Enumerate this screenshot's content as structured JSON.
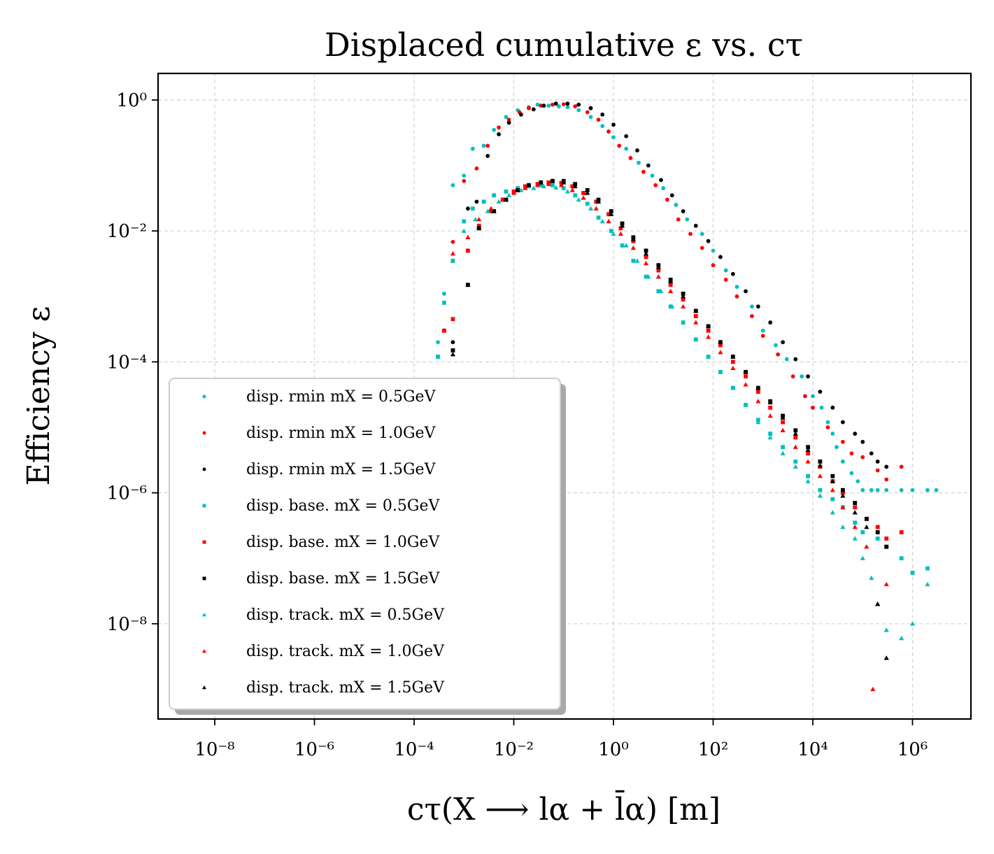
{
  "chart_data": {
    "type": "scatter",
    "title": "Displaced cumulative ε vs. cτ",
    "xlabel": "cτ(X ⟶ lα + l̄α) [m]",
    "ylabel": "Efficiency ε",
    "x_scale": "log",
    "y_scale": "log",
    "xlim": [
      1e-09,
      10000000.0
    ],
    "ylim": [
      3e-10,
      2.5
    ],
    "grid": true,
    "legend_position": "lower-left",
    "x_ticks": [
      {
        "value": 1e-08,
        "label": "10⁻⁸"
      },
      {
        "value": 1e-06,
        "label": "10⁻⁶"
      },
      {
        "value": 0.0001,
        "label": "10⁻⁴"
      },
      {
        "value": 0.01,
        "label": "10⁻²"
      },
      {
        "value": 1,
        "label": "10⁰"
      },
      {
        "value": 100.0,
        "label": "10²"
      },
      {
        "value": 10000.0,
        "label": "10⁴"
      },
      {
        "value": 1000000.0,
        "label": "10⁶"
      }
    ],
    "y_ticks": [
      {
        "value": 1,
        "label": "10⁰"
      },
      {
        "value": 0.01,
        "label": "10⁻²"
      },
      {
        "value": 0.0001,
        "label": "10⁻⁴"
      },
      {
        "value": 1e-06,
        "label": "10⁻⁶"
      },
      {
        "value": 1e-08,
        "label": "10⁻⁸"
      }
    ],
    "series": [
      {
        "name": "disp. r_min m_X = 0.5GeV",
        "label": "disp. rmin mX = 0.5GeV",
        "color": "#00bfbf",
        "marker": "circle",
        "x": [
          0.0003,
          0.0003,
          0.0004,
          0.0006,
          0.001,
          0.0015,
          0.0025,
          0.004,
          0.007,
          0.012,
          0.02,
          0.03,
          0.05,
          0.08,
          0.12,
          0.2,
          0.35,
          0.6,
          1.0,
          1.8,
          3.2,
          6,
          10,
          18,
          30,
          60,
          100,
          180,
          300,
          600,
          1000,
          1800,
          3000,
          6000,
          10000,
          15000,
          20000,
          25000,
          30000,
          40000,
          60000,
          80000,
          100000,
          150000,
          200000,
          300000,
          600000,
          1000000,
          2000000,
          3000000
        ],
        "y": [
          0.0002,
          0.00012,
          0.0011,
          0.05,
          0.07,
          0.18,
          0.2,
          0.35,
          0.55,
          0.7,
          0.78,
          0.85,
          0.82,
          0.8,
          0.78,
          0.7,
          0.55,
          0.4,
          0.27,
          0.18,
          0.11,
          0.07,
          0.045,
          0.025,
          0.015,
          0.009,
          0.005,
          0.0025,
          0.0014,
          0.0007,
          0.0003,
          0.00018,
          0.00011,
          6e-05,
          3e-05,
          2e-05,
          1.2e-05,
          8e-06,
          5e-06,
          3e-06,
          2e-06,
          1.5e-06,
          1.1e-06,
          1.1e-06,
          1.1e-06,
          1.1e-06,
          1.1e-06,
          1.1e-06,
          1.1e-06,
          1.1e-06
        ]
      },
      {
        "name": "disp. r_min m_X = 1.0GeV",
        "label": "disp. rmin mX = 1.0GeV",
        "color": "#ff0000",
        "marker": "circle",
        "x": [
          0.0004,
          0.0004,
          0.0006,
          0.001,
          0.0018,
          0.003,
          0.005,
          0.008,
          0.013,
          0.02,
          0.035,
          0.06,
          0.1,
          0.17,
          0.3,
          0.5,
          0.8,
          1.3,
          2.2,
          4,
          7,
          12,
          20,
          35,
          60,
          100,
          180,
          300,
          600,
          1000,
          2000,
          4000,
          7000,
          10000,
          20000,
          40000,
          60000,
          100000,
          200000,
          300000,
          600000
        ],
        "y": [
          4e-05,
          3e-05,
          0.0068,
          0.058,
          0.09,
          0.2,
          0.38,
          0.5,
          0.65,
          0.75,
          0.82,
          0.85,
          0.86,
          0.8,
          0.65,
          0.5,
          0.33,
          0.2,
          0.13,
          0.08,
          0.05,
          0.03,
          0.015,
          0.009,
          0.0055,
          0.003,
          0.0018,
          0.001,
          0.0005,
          0.00025,
          0.00013,
          6e-05,
          3e-05,
          2e-05,
          1e-05,
          6e-06,
          4e-06,
          3.5e-06,
          2.2e-06,
          1.6e-06,
          2.5e-06
        ]
      },
      {
        "name": "disp. r_min m_X = 1.5GeV",
        "label": "disp. rmin mX = 1.5GeV",
        "color": "#000000",
        "marker": "circle",
        "x": [
          0.0006,
          0.0006,
          0.0012,
          0.0018,
          0.003,
          0.005,
          0.008,
          0.014,
          0.025,
          0.04,
          0.07,
          0.12,
          0.2,
          0.35,
          0.6,
          1.0,
          1.8,
          3,
          5,
          9,
          15,
          25,
          45,
          80,
          140,
          250,
          450,
          800,
          1400,
          2500,
          4500,
          8000,
          14000,
          25000,
          40000,
          70000,
          100000,
          150000,
          200000,
          300000
        ],
        "y": [
          0.0002,
          0.00015,
          0.022,
          0.028,
          0.14,
          0.3,
          0.45,
          0.6,
          0.72,
          0.82,
          0.88,
          0.88,
          0.85,
          0.75,
          0.6,
          0.42,
          0.28,
          0.17,
          0.1,
          0.06,
          0.035,
          0.02,
          0.012,
          0.007,
          0.004,
          0.0022,
          0.0012,
          0.0007,
          0.0004,
          0.0002,
          0.00011,
          6e-05,
          3.5e-05,
          2e-05,
          1.2e-05,
          8e-06,
          6e-06,
          4e-06,
          3e-06,
          2.5e-06
        ]
      },
      {
        "name": "disp. base. m_X = 0.5GeV",
        "label": "disp. base. mX = 0.5GeV",
        "color": "#00bfbf",
        "marker": "square",
        "x": [
          0.0003,
          0.0004,
          0.0006,
          0.001,
          0.0015,
          0.0025,
          0.004,
          0.007,
          0.012,
          0.02,
          0.035,
          0.06,
          0.1,
          0.17,
          0.3,
          0.5,
          0.9,
          1.5,
          2.5,
          4.5,
          8,
          14,
          25,
          45,
          80,
          140,
          250,
          450,
          800,
          1400,
          2500,
          4500,
          8000,
          14000,
          25000,
          40000,
          70000,
          100000,
          200000,
          300000,
          600000,
          1000000,
          2000000
        ],
        "y": [
          0.00012,
          0.0008,
          0.0035,
          0.014,
          0.022,
          0.028,
          0.035,
          0.04,
          0.045,
          0.048,
          0.05,
          0.05,
          0.045,
          0.035,
          0.026,
          0.016,
          0.01,
          0.006,
          0.0035,
          0.002,
          0.0012,
          0.0007,
          0.0004,
          0.00022,
          0.00012,
          7e-05,
          4e-05,
          2.2e-05,
          1.3e-05,
          8e-06,
          5e-06,
          3e-06,
          1.8e-06,
          1.1e-06,
          8e-07,
          6e-07,
          3.5e-07,
          2.5e-07,
          2e-07,
          1.5e-07,
          1e-07,
          6e-08,
          7e-08
        ]
      },
      {
        "name": "disp. base. m_X = 1.0GeV",
        "label": "disp. base. mX = 1.0GeV",
        "color": "#ff0000",
        "marker": "square",
        "x": [
          0.0004,
          0.0006,
          0.0012,
          0.002,
          0.0035,
          0.006,
          0.01,
          0.017,
          0.03,
          0.05,
          0.09,
          0.15,
          0.25,
          0.45,
          0.8,
          1.4,
          2.5,
          4.5,
          8,
          14,
          25,
          45,
          80,
          140,
          250,
          450,
          800,
          1400,
          2500,
          4500,
          8000,
          14000,
          25000,
          40000,
          70000,
          120000,
          200000,
          300000,
          600000
        ],
        "y": [
          0.0003,
          0.00045,
          0.005,
          0.012,
          0.02,
          0.03,
          0.04,
          0.048,
          0.052,
          0.055,
          0.054,
          0.048,
          0.038,
          0.028,
          0.018,
          0.011,
          0.007,
          0.004,
          0.0025,
          0.0015,
          0.0009,
          0.0005,
          0.0003,
          0.00018,
          0.0001,
          6e-05,
          3.5e-05,
          2e-05,
          1.2e-05,
          7e-06,
          4e-06,
          2.5e-06,
          1.5e-06,
          1e-06,
          6e-07,
          4e-07,
          3e-07,
          2e-07,
          2.5e-07
        ]
      },
      {
        "name": "disp. base. m_X = 1.5GeV",
        "label": "disp. base. mX = 1.5GeV",
        "color": "#000000",
        "marker": "square",
        "x": [
          0.0006,
          0.0012,
          0.002,
          0.004,
          0.007,
          0.012,
          0.02,
          0.035,
          0.06,
          0.1,
          0.17,
          0.3,
          0.5,
          0.9,
          1.5,
          2.5,
          4.5,
          8,
          14,
          25,
          45,
          80,
          140,
          250,
          450,
          800,
          1400,
          2500,
          4500,
          8000,
          14000,
          25000,
          40000,
          70000,
          120000,
          200000,
          300000
        ],
        "y": [
          0.00015,
          0.0015,
          0.011,
          0.02,
          0.03,
          0.042,
          0.05,
          0.055,
          0.058,
          0.058,
          0.052,
          0.042,
          0.03,
          0.02,
          0.013,
          0.008,
          0.005,
          0.003,
          0.0018,
          0.0011,
          0.0006,
          0.00035,
          0.0002,
          0.00012,
          7e-05,
          4e-05,
          2.5e-05,
          1.5e-05,
          9e-06,
          5e-06,
          3e-06,
          1.8e-06,
          1.1e-06,
          7e-07,
          4e-07,
          2.5e-07,
          1.5e-07
        ]
      },
      {
        "name": "disp. track. m_X = 0.5GeV",
        "label": "disp. track. mX = 0.5GeV",
        "color": "#00bfbf",
        "marker": "triangle",
        "x": [
          0.0003,
          0.0006,
          0.001,
          0.0017,
          0.003,
          0.005,
          0.008,
          0.014,
          0.025,
          0.04,
          0.07,
          0.12,
          0.2,
          0.35,
          0.6,
          1.0,
          1.8,
          3,
          5,
          9,
          15,
          25,
          45,
          80,
          140,
          250,
          450,
          800,
          1400,
          2500,
          4500,
          8000,
          14000,
          25000,
          40000,
          70000,
          100000,
          150000,
          200000,
          300000,
          600000,
          1000000,
          2000000
        ],
        "y": [
          0.00012,
          0.0035,
          0.01,
          0.015,
          0.02,
          0.028,
          0.035,
          0.042,
          0.045,
          0.048,
          0.046,
          0.04,
          0.03,
          0.022,
          0.014,
          0.009,
          0.006,
          0.0035,
          0.002,
          0.0012,
          0.0007,
          0.0004,
          0.00022,
          0.00012,
          7e-05,
          4e-05,
          2.2e-05,
          1.2e-05,
          7e-06,
          4e-06,
          2.5e-06,
          1.5e-06,
          9e-07,
          5e-07,
          3e-07,
          2e-07,
          1e-07,
          5e-08,
          2e-08,
          8e-09,
          6e-09,
          1e-08,
          4e-08
        ]
      },
      {
        "name": "disp. track. m_X = 1.0GeV",
        "label": "disp. track. mX = 1.0GeV",
        "color": "#ff0000",
        "marker": "triangle",
        "x": [
          0.0004,
          0.0006,
          0.0012,
          0.002,
          0.0035,
          0.006,
          0.01,
          0.017,
          0.03,
          0.05,
          0.09,
          0.15,
          0.25,
          0.45,
          0.8,
          1.4,
          2.5,
          4.5,
          8,
          14,
          25,
          45,
          80,
          140,
          250,
          450,
          800,
          1400,
          2500,
          4500,
          8000,
          14000,
          25000,
          40000,
          70000,
          120000,
          160000,
          200000,
          300000
        ],
        "y": [
          0.0003,
          0.0045,
          0.008,
          0.015,
          0.022,
          0.03,
          0.038,
          0.045,
          0.05,
          0.052,
          0.05,
          0.042,
          0.032,
          0.022,
          0.014,
          0.009,
          0.0055,
          0.0032,
          0.002,
          0.0012,
          0.0007,
          0.0004,
          0.00024,
          0.00014,
          8e-05,
          4.5e-05,
          2.5e-05,
          1.5e-05,
          9e-06,
          5e-06,
          3e-06,
          1.8e-06,
          1.1e-06,
          6e-07,
          3e-07,
          1.5e-07,
          1e-09,
          2e-08,
          4e-08
        ]
      },
      {
        "name": "disp. track. m_X = 1.5GeV",
        "label": "disp. track. mX = 1.5GeV",
        "color": "#000000",
        "marker": "triangle",
        "x": [
          0.0006,
          0.0012,
          0.002,
          0.004,
          0.007,
          0.012,
          0.02,
          0.035,
          0.06,
          0.1,
          0.17,
          0.3,
          0.5,
          0.9,
          1.5,
          2.5,
          4.5,
          8,
          14,
          25,
          45,
          80,
          140,
          250,
          450,
          800,
          1400,
          2500,
          4500,
          8000,
          14000,
          25000,
          40000,
          70000,
          120000,
          200000,
          300000
        ],
        "y": [
          0.00013,
          0.0015,
          0.011,
          0.02,
          0.03,
          0.042,
          0.05,
          0.055,
          0.058,
          0.055,
          0.048,
          0.038,
          0.028,
          0.018,
          0.012,
          0.0075,
          0.0045,
          0.0028,
          0.0017,
          0.001,
          0.0006,
          0.00035,
          0.0002,
          0.00012,
          7e-05,
          4e-05,
          2.4e-05,
          1.4e-05,
          8e-06,
          4.5e-06,
          2.6e-06,
          1.5e-06,
          9e-07,
          5e-07,
          3e-07,
          2e-08,
          3e-09
        ]
      }
    ]
  }
}
